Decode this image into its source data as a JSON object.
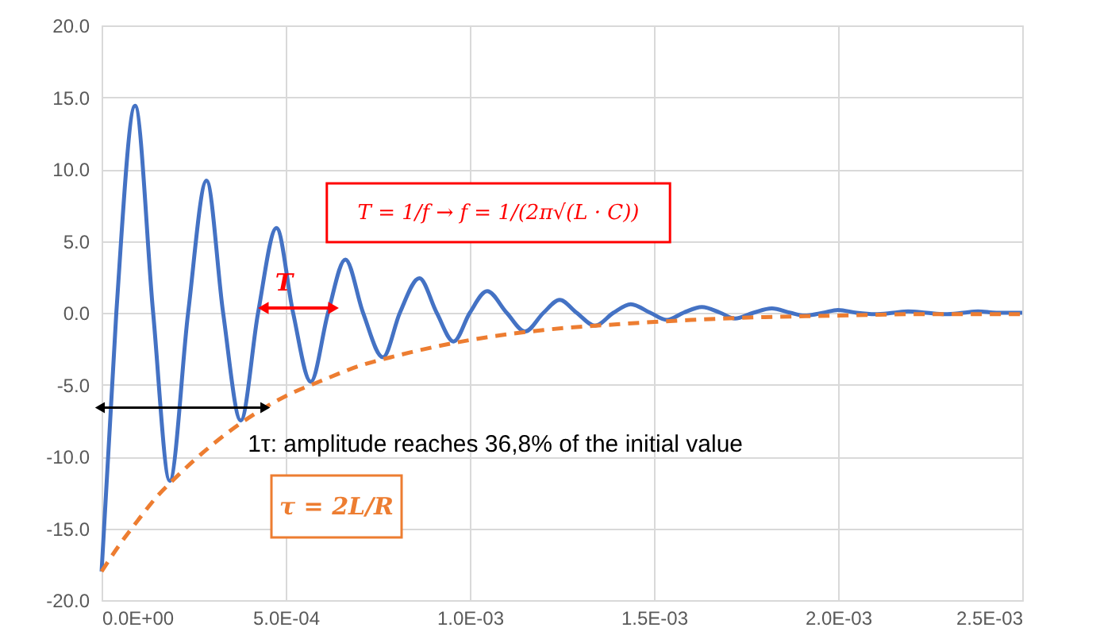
{
  "chart_data": {
    "type": "line",
    "xlim": [
      0,
      0.0025
    ],
    "ylim": [
      -20,
      20
    ],
    "xticks": [
      {
        "value": 0,
        "label": "0.0E+00"
      },
      {
        "value": 0.0005,
        "label": "5.0E-04"
      },
      {
        "value": 0.001,
        "label": "1.0E-03"
      },
      {
        "value": 0.0015,
        "label": "1.5E-03"
      },
      {
        "value": 0.002,
        "label": "2.0E-03"
      },
      {
        "value": 0.0025,
        "label": "2.5E-03"
      }
    ],
    "yticks": [
      {
        "value": -20,
        "label": "-20.0"
      },
      {
        "value": -15,
        "label": "-15.0"
      },
      {
        "value": -10,
        "label": "-10.0"
      },
      {
        "value": -5,
        "label": "-5.0"
      },
      {
        "value": 0,
        "label": "0.0"
      },
      {
        "value": 5,
        "label": "5.0"
      },
      {
        "value": 10,
        "label": "10.0"
      },
      {
        "value": 15,
        "label": "15.0"
      },
      {
        "value": 20,
        "label": "20.0"
      }
    ],
    "grid": true,
    "marker": "none",
    "series": [
      {
        "color": "#4472c4",
        "line_style": "solid",
        "x": [
          0,
          4e-05,
          9.1e-05,
          0.00014,
          0.000185,
          0.000235,
          0.000285,
          0.00033,
          0.000378,
          0.000425,
          0.000475,
          0.00052,
          0.000568,
          0.000615,
          0.000662,
          0.00071,
          0.000764,
          0.00081,
          0.000863,
          0.00091,
          0.000956,
          0.001,
          0.001047,
          0.0011,
          0.00115,
          0.0012,
          0.001244,
          0.00129,
          0.00134,
          0.00139,
          0.001437,
          0.00149,
          0.001535,
          0.00158,
          0.00163,
          0.00168,
          0.00172,
          0.00177,
          0.00182,
          0.00187,
          0.00191,
          0.00196,
          0.002,
          0.00205,
          0.0021,
          0.00215,
          0.00219,
          0.00224,
          0.00229,
          0.00234,
          0.00238,
          0.00243,
          0.0025
        ],
        "values": [
          -18,
          0,
          14.4,
          0,
          -11.7,
          0,
          9.2,
          0,
          -7.5,
          0,
          5.9,
          0,
          -4.8,
          0,
          3.7,
          0,
          -3.1,
          0,
          2.4,
          0,
          -2.0,
          0,
          1.5,
          0,
          -1.3,
          0,
          0.9,
          0,
          -0.9,
          0,
          0.6,
          0,
          -0.5,
          0,
          0.4,
          0,
          -0.4,
          0,
          0.3,
          0,
          -0.2,
          0,
          0.2,
          0,
          -0.1,
          0,
          0.1,
          0,
          -0.1,
          0,
          0.1,
          0,
          0
        ]
      },
      {
        "color": "#ed7d31",
        "line_style": "dashed",
        "x": [
          0,
          5e-05,
          0.0001,
          0.00015,
          0.0002,
          0.0003,
          0.0004,
          0.0005,
          0.0006,
          0.0007,
          0.0008,
          0.0009,
          0.001,
          0.0012,
          0.0014,
          0.0016,
          0.0018,
          0.002,
          0.0022,
          0.0025
        ],
        "values": [
          -18,
          -16.1,
          -14.4,
          -12.8,
          -11.5,
          -9.2,
          -7.3,
          -5.8,
          -4.7,
          -3.7,
          -3.0,
          -2.4,
          -1.9,
          -1.2,
          -0.8,
          -0.5,
          -0.3,
          -0.2,
          -0.1,
          -0.1
        ]
      }
    ],
    "annotations": [
      "T = 1/f → f = 1/(2π√(L · C))",
      "τ = 2L/R",
      "T",
      {
        "text": "1τ: amplitude reaches 36,8% of the initial value",
        "x": 0.00044,
        "y": -6.6
      }
    ]
  }
}
